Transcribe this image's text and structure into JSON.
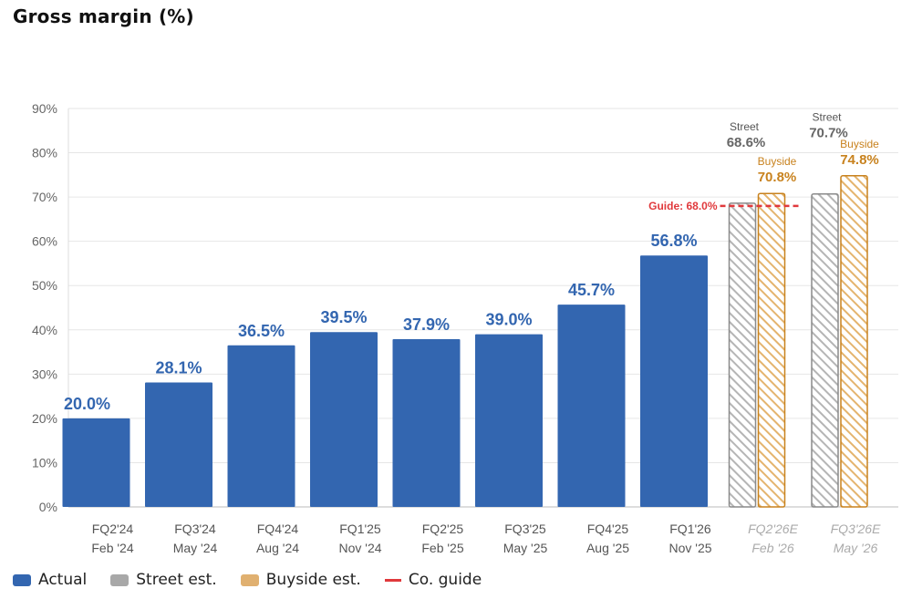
{
  "header": {
    "title": "Gross margin (%)"
  },
  "colors": {
    "actual": "#3366b0",
    "street": "#a8a8a8",
    "buyside": "#e0b070",
    "buyside_text": "#c8821e",
    "guide": "#e0393c",
    "grid": "#e6e6e6",
    "axis_text": "#666666",
    "est_text": "#aaaaaa"
  },
  "legend": [
    {
      "label": "Actual",
      "kind": "actual"
    },
    {
      "label": "Street est.",
      "kind": "street"
    },
    {
      "label": "Buyside est.",
      "kind": "buyside"
    },
    {
      "label": "Co. guide",
      "kind": "guide"
    }
  ],
  "chart_data": {
    "type": "bar",
    "title": "Gross margin (%)",
    "ylim": [
      0,
      90
    ],
    "yticks": [
      0,
      10,
      20,
      30,
      40,
      50,
      60,
      70,
      80,
      90
    ],
    "ytick_labels": [
      "0%",
      "10%",
      "20%",
      "30%",
      "40%",
      "50%",
      "60%",
      "70%",
      "80%",
      "90%"
    ],
    "grid": true,
    "legend_position": "bottom-left",
    "categories": [
      {
        "line1": "FQ2'24",
        "line2": "Feb '24",
        "estimate": false
      },
      {
        "line1": "FQ3'24",
        "line2": "May '24",
        "estimate": false
      },
      {
        "line1": "FQ4'24",
        "line2": "Aug '24",
        "estimate": false
      },
      {
        "line1": "FQ1'25",
        "line2": "Nov '24",
        "estimate": false
      },
      {
        "line1": "FQ2'25",
        "line2": "Feb '25",
        "estimate": false
      },
      {
        "line1": "FQ3'25",
        "line2": "May '25",
        "estimate": false
      },
      {
        "line1": "FQ4'25",
        "line2": "Aug '25",
        "estimate": false
      },
      {
        "line1": "FQ1'26",
        "line2": "Nov '25",
        "estimate": false
      },
      {
        "line1": "FQ2'26E",
        "line2": "Feb '26",
        "estimate": true
      },
      {
        "line1": "FQ3'26E",
        "line2": "May '26",
        "estimate": true
      }
    ],
    "actual": {
      "name": "Actual",
      "values": [
        20.0,
        28.1,
        36.5,
        39.5,
        37.9,
        39.0,
        45.7,
        56.8
      ],
      "labels": [
        "20.0%",
        "28.1%",
        "36.5%",
        "39.5%",
        "37.9%",
        "39.0%",
        "45.7%",
        "56.8%"
      ]
    },
    "estimates": [
      {
        "category_index": 8,
        "street": {
          "tag": "Street",
          "value": 68.6,
          "label": "68.6%"
        },
        "buyside": {
          "tag": "Buyside",
          "value": 70.8,
          "label": "70.8%"
        }
      },
      {
        "category_index": 9,
        "street": {
          "tag": "Street",
          "value": 70.7,
          "label": "70.7%"
        },
        "buyside": {
          "tag": "Buyside",
          "value": 74.8,
          "label": "74.8%"
        }
      }
    ],
    "guide": {
      "value": 68.0,
      "label": "Guide: 68.0%",
      "category_index": 8
    }
  }
}
